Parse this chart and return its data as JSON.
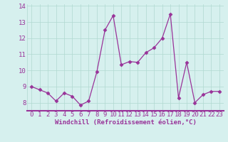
{
  "x": [
    0,
    1,
    2,
    3,
    4,
    5,
    6,
    7,
    8,
    9,
    10,
    11,
    12,
    13,
    14,
    15,
    16,
    17,
    18,
    19,
    20,
    21,
    22,
    23
  ],
  "y": [
    9.0,
    8.8,
    8.6,
    8.1,
    8.6,
    8.4,
    7.85,
    8.1,
    9.9,
    12.5,
    13.4,
    10.35,
    10.55,
    10.5,
    11.1,
    11.4,
    12.0,
    13.5,
    8.3,
    10.5,
    8.0,
    8.5,
    8.7,
    8.7
  ],
  "line_color": "#993399",
  "marker": "D",
  "marker_size": 2.5,
  "bg_color": "#d6f0ee",
  "grid_color": "#b0d8d0",
  "xlabel": "Windchill (Refroidissement éolien,°C)",
  "xlim": [
    -0.5,
    23.5
  ],
  "ylim": [
    7.5,
    14.1
  ],
  "yticks": [
    8,
    9,
    10,
    11,
    12,
    13,
    14
  ],
  "xticks": [
    0,
    1,
    2,
    3,
    4,
    5,
    6,
    7,
    8,
    9,
    10,
    11,
    12,
    13,
    14,
    15,
    16,
    17,
    18,
    19,
    20,
    21,
    22,
    23
  ],
  "xlabel_fontsize": 6.5,
  "tick_fontsize": 6.5,
  "label_color": "#993399",
  "axis_line_color": "#993399",
  "spine_bottom_color": "#993399"
}
